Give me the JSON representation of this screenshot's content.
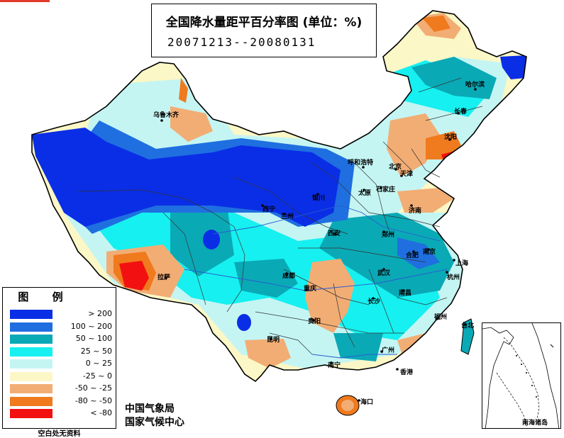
{
  "title": {
    "main": "全国降水量距平百分率图 (单位：%)",
    "dates": "20071213--20080131"
  },
  "legend": {
    "title": "图 例",
    "entries": [
      {
        "label": "> 200",
        "color": "#0a2ee6"
      },
      {
        "label": "100 ~ 200",
        "color": "#1f6fe0"
      },
      {
        "label": "50 ~ 100",
        "color": "#0aa9b6"
      },
      {
        "label": "25 ~ 50",
        "color": "#16f0f0"
      },
      {
        "label": "0 ~ 25",
        "color": "#c4f5f3"
      },
      {
        "label": "-25 ~ 0",
        "color": "#fbf7c6"
      },
      {
        "label": "-50 ~ -25",
        "color": "#f2ad74"
      },
      {
        "label": "-80 ~ -50",
        "color": "#f07a1e"
      },
      {
        "label": "< -80",
        "color": "#f21010"
      }
    ],
    "note": "空白处无资料"
  },
  "agency": {
    "line1": "中国气象局",
    "line2": "国家气候中心"
  },
  "inset": {
    "label": "南海诸岛"
  },
  "cities": [
    {
      "name": "乌鲁木齐"
    },
    {
      "name": "哈尔滨"
    },
    {
      "name": "长春"
    },
    {
      "name": "沈阳"
    },
    {
      "name": "呼和浩特"
    },
    {
      "name": "北京"
    },
    {
      "name": "天津"
    },
    {
      "name": "石家庄"
    },
    {
      "name": "太原"
    },
    {
      "name": "济南"
    },
    {
      "name": "银川"
    },
    {
      "name": "西宁"
    },
    {
      "name": "兰州"
    },
    {
      "name": "西安"
    },
    {
      "name": "郑州"
    },
    {
      "name": "合肥"
    },
    {
      "name": "南京"
    },
    {
      "name": "上海"
    },
    {
      "name": "武汉"
    },
    {
      "name": "杭州"
    },
    {
      "name": "成都"
    },
    {
      "name": "重庆"
    },
    {
      "name": "长沙"
    },
    {
      "name": "南昌"
    },
    {
      "name": "福州"
    },
    {
      "name": "台北"
    },
    {
      "name": "拉萨"
    },
    {
      "name": "贵阳"
    },
    {
      "name": "昆明"
    },
    {
      "name": "南宁"
    },
    {
      "name": "广州"
    },
    {
      "name": "香港"
    },
    {
      "name": "海口"
    }
  ]
}
